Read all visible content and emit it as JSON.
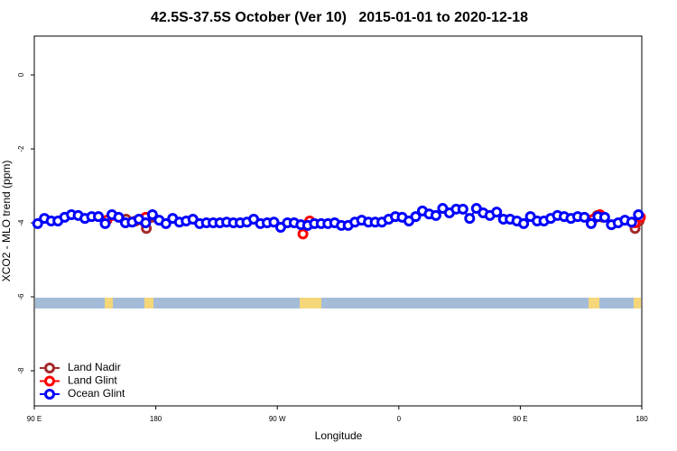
{
  "chart_data": {
    "type": "line",
    "title": "42.5S-37.5S October (Ver 10)   2015-01-01 to 2020-12-18",
    "x_label": "Longitude",
    "y_label": "XCO2 - MLO trend (ppm)",
    "xlim": [
      90,
      540
    ],
    "ylim": [
      -8.95,
      1.05
    ],
    "xticks": [
      {
        "value": 90,
        "label": "90 E"
      },
      {
        "value": 180,
        "label": "180"
      },
      {
        "value": 270,
        "label": "90 W"
      },
      {
        "value": 360,
        "label": "0"
      },
      {
        "value": 450,
        "label": "90 E"
      },
      {
        "value": 540,
        "label": "180"
      }
    ],
    "yticks": [
      0,
      -2,
      -4,
      -6,
      -8
    ],
    "legend": "bottom-left",
    "series": [
      {
        "name": "Land Nadir",
        "color": "#a52a2a",
        "x": [
          158,
          165,
          173,
          177,
          340,
          507,
          511,
          520,
          535,
          538
        ],
        "values": [
          -3.9,
          -3.95,
          -4.15,
          -3.85,
          null,
          -3.8,
          -3.85,
          null,
          -4.15,
          -3.95
        ]
      },
      {
        "name": "Land Glint",
        "color": "#ff0000",
        "x": [
          143.7,
          147.7,
          160,
          172.5,
          230,
          289,
          294,
          400,
          504,
          509,
          520,
          535,
          539
        ],
        "values": [
          -3.93,
          -3.8,
          null,
          -3.85,
          null,
          -4.3,
          -3.95,
          null,
          -3.9,
          -3.78,
          null,
          -4.0,
          -3.85
        ]
      },
      {
        "name": "Ocean Glint",
        "color": "#0000ff",
        "x": [
          92.5,
          97.5,
          102.5,
          107.5,
          112.5,
          117.5,
          122.5,
          127.5,
          132.5,
          137.5,
          142.5,
          147.5,
          152.5,
          157.5,
          162.5,
          167.5,
          172.5,
          177.5,
          182.5,
          187.5,
          192.5,
          197.5,
          202.5,
          207.5,
          212.5,
          217.5,
          222.5,
          227.5,
          232.5,
          237.5,
          242.5,
          247.5,
          252.5,
          257.5,
          262.5,
          267.5,
          272.5,
          277.5,
          282.5,
          287.5,
          292.5,
          297.5,
          302.5,
          307.5,
          312.5,
          317.5,
          322.5,
          327.5,
          332.5,
          337.5,
          342.5,
          347.5,
          352.5,
          357.5,
          362.5,
          367.5,
          372.5,
          377.5,
          382.5,
          387.5,
          392.5,
          397.5,
          402.5,
          407.5,
          412.5,
          417.5,
          422.5,
          427.5,
          432.5,
          437.5,
          442.5,
          447.5,
          452.5,
          457.5,
          462.5,
          467.5,
          472.5,
          477.5,
          482.5,
          487.5,
          492.5,
          497.5,
          502.5,
          507.5,
          512.5,
          517.5,
          522.5,
          527.5,
          532.5,
          537.5
        ],
        "values": [
          -4.02,
          -3.88,
          -3.95,
          -3.95,
          -3.85,
          -3.78,
          -3.8,
          -3.88,
          -3.83,
          -3.83,
          -4.02,
          -3.78,
          -3.85,
          -4.0,
          -3.98,
          -3.9,
          -4.0,
          -3.78,
          -3.93,
          -4.02,
          -3.88,
          -3.98,
          -3.95,
          -3.9,
          -4.02,
          -4.0,
          -4.0,
          -4.0,
          -3.98,
          -4.0,
          -4.0,
          -3.98,
          -3.9,
          -4.02,
          -4.0,
          -3.98,
          -4.12,
          -4.0,
          -4.0,
          -4.05,
          -4.07,
          -4.02,
          -4.02,
          -4.02,
          -4.0,
          -4.07,
          -4.07,
          -3.98,
          -3.93,
          -3.98,
          -3.98,
          -3.98,
          -3.9,
          -3.83,
          -3.85,
          -3.95,
          -3.83,
          -3.68,
          -3.76,
          -3.8,
          -3.61,
          -3.73,
          -3.63,
          -3.63,
          -3.88,
          -3.61,
          -3.73,
          -3.8,
          -3.71,
          -3.9,
          -3.9,
          -3.95,
          -4.02,
          -3.83,
          -3.95,
          -3.95,
          -3.88,
          -3.8,
          -3.83,
          -3.88,
          -3.83,
          -3.85,
          -4.02,
          -3.83,
          -3.85,
          -4.05,
          -4.0,
          -3.93,
          -3.98,
          -3.78
        ]
      }
    ]
  }
}
